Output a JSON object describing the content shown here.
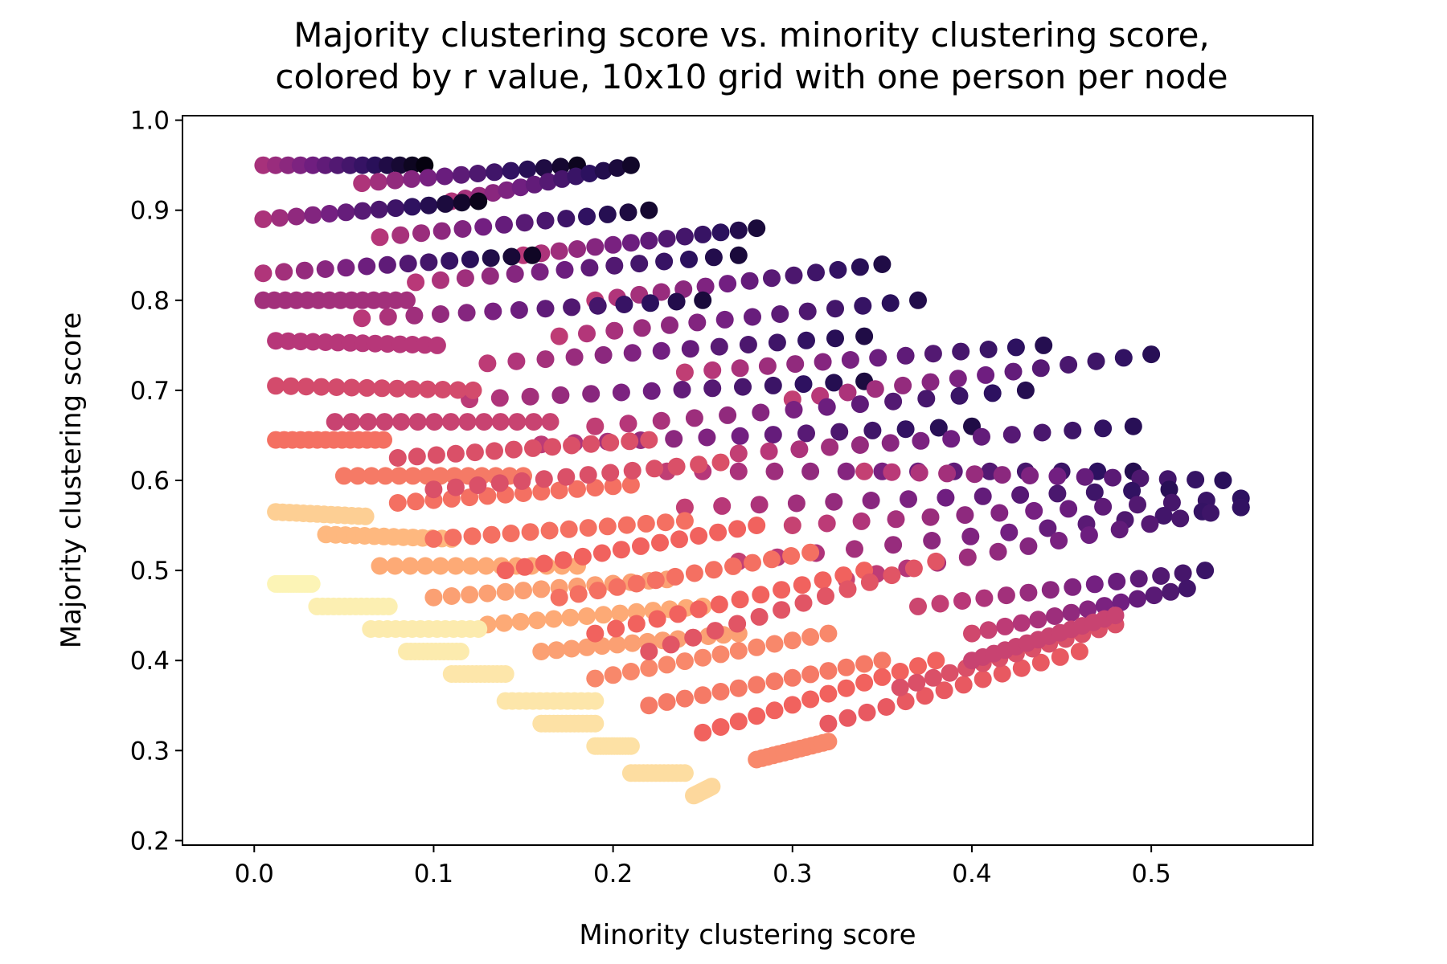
{
  "chart_data": {
    "type": "scatter",
    "title_lines": [
      "Majority clustering score vs. minority clustering score,",
      "colored by r value, 10x10 grid with one person per node"
    ],
    "xlabel": "Minority clustering score",
    "ylabel": "Majority clustering score",
    "xlim": [
      -0.04,
      0.59
    ],
    "ylim": [
      0.195,
      1.005
    ],
    "xticks": [
      "0.0",
      "0.1",
      "0.2",
      "0.3",
      "0.4",
      "0.5"
    ],
    "yticks": [
      "0.2",
      "0.3",
      "0.4",
      "0.5",
      "0.6",
      "0.7",
      "0.8",
      "0.9",
      "1.0"
    ],
    "colormap": "magma",
    "color_stops": [
      "#000004",
      "#2c115f",
      "#721f81",
      "#b73779",
      "#f1605d",
      "#feb078",
      "#fcfdbf"
    ],
    "grid": false,
    "legend": "none",
    "description_of_points": "Many short chains of markers; each chain has a start point (minority, majority) and runs toward the upper right, colored from light (low r) to dark (high r).",
    "chains": [
      {
        "start": [
          0.005,
          0.95
        ],
        "dx": 0.09,
        "dy": 0.0,
        "c": 0.98
      },
      {
        "start": [
          0.06,
          0.93
        ],
        "dx": 0.12,
        "dy": 0.02,
        "c": 0.95
      },
      {
        "start": [
          0.11,
          0.91
        ],
        "dx": 0.1,
        "dy": 0.04,
        "c": 0.93
      },
      {
        "start": [
          0.005,
          0.89
        ],
        "dx": 0.12,
        "dy": 0.02,
        "c": 0.96
      },
      {
        "start": [
          0.07,
          0.87
        ],
        "dx": 0.15,
        "dy": 0.03,
        "c": 0.92
      },
      {
        "start": [
          0.15,
          0.85
        ],
        "dx": 0.13,
        "dy": 0.03,
        "c": 0.9
      },
      {
        "start": [
          0.005,
          0.83
        ],
        "dx": 0.15,
        "dy": 0.02,
        "c": 0.94
      },
      {
        "start": [
          0.09,
          0.82
        ],
        "dx": 0.18,
        "dy": 0.03,
        "c": 0.9
      },
      {
        "start": [
          0.19,
          0.8
        ],
        "dx": 0.16,
        "dy": 0.04,
        "c": 0.88
      },
      {
        "start": [
          0.06,
          0.78
        ],
        "dx": 0.19,
        "dy": 0.02,
        "c": 0.9
      },
      {
        "start": [
          0.17,
          0.76
        ],
        "dx": 0.2,
        "dy": 0.04,
        "c": 0.87
      },
      {
        "start": [
          0.13,
          0.73
        ],
        "dx": 0.21,
        "dy": 0.03,
        "c": 0.88
      },
      {
        "start": [
          0.24,
          0.72
        ],
        "dx": 0.2,
        "dy": 0.03,
        "c": 0.86
      },
      {
        "start": [
          0.12,
          0.69
        ],
        "dx": 0.22,
        "dy": 0.02,
        "c": 0.89
      },
      {
        "start": [
          0.3,
          0.69
        ],
        "dx": 0.2,
        "dy": 0.05,
        "c": 0.85
      },
      {
        "start": [
          0.19,
          0.66
        ],
        "dx": 0.24,
        "dy": 0.04,
        "c": 0.86
      },
      {
        "start": [
          0.16,
          0.64
        ],
        "dx": 0.24,
        "dy": 0.02,
        "c": 0.88
      },
      {
        "start": [
          0.27,
          0.63
        ],
        "dx": 0.22,
        "dy": 0.03,
        "c": 0.85
      },
      {
        "start": [
          0.23,
          0.61
        ],
        "dx": 0.26,
        "dy": 0.0,
        "c": 0.86
      },
      {
        "start": [
          0.34,
          0.61
        ],
        "dx": 0.2,
        "dy": -0.01,
        "c": 0.84
      },
      {
        "start": [
          0.24,
          0.57
        ],
        "dx": 0.27,
        "dy": 0.02,
        "c": 0.85
      },
      {
        "start": [
          0.3,
          0.55
        ],
        "dx": 0.25,
        "dy": 0.03,
        "c": 0.83
      },
      {
        "start": [
          0.27,
          0.51
        ],
        "dx": 0.28,
        "dy": 0.06,
        "c": 0.84
      },
      {
        "start": [
          0.33,
          0.49
        ],
        "dx": 0.22,
        "dy": 0.08,
        "c": 0.82
      },
      {
        "start": [
          0.37,
          0.46
        ],
        "dx": 0.16,
        "dy": 0.04,
        "c": 0.8
      },
      {
        "start": [
          0.4,
          0.43
        ],
        "dx": 0.12,
        "dy": 0.05,
        "c": 0.78
      },
      {
        "start": [
          0.005,
          0.8
        ],
        "dx": 0.08,
        "dy": 0.0,
        "c": 0.55
      },
      {
        "start": [
          0.012,
          0.755
        ],
        "dx": 0.09,
        "dy": -0.005,
        "c": 0.5
      },
      {
        "start": [
          0.012,
          0.705
        ],
        "dx": 0.11,
        "dy": -0.005,
        "c": 0.42
      },
      {
        "start": [
          0.012,
          0.645
        ],
        "dx": 0.06,
        "dy": 0.0,
        "c": 0.3
      },
      {
        "start": [
          0.045,
          0.665
        ],
        "dx": 0.12,
        "dy": 0.0,
        "c": 0.45
      },
      {
        "start": [
          0.05,
          0.605
        ],
        "dx": 0.1,
        "dy": 0.0,
        "c": 0.28
      },
      {
        "start": [
          0.08,
          0.625
        ],
        "dx": 0.14,
        "dy": 0.02,
        "c": 0.4
      },
      {
        "start": [
          0.08,
          0.575
        ],
        "dx": 0.13,
        "dy": 0.02,
        "c": 0.3
      },
      {
        "start": [
          0.1,
          0.59
        ],
        "dx": 0.16,
        "dy": 0.03,
        "c": 0.4
      },
      {
        "start": [
          0.012,
          0.565
        ],
        "dx": 0.05,
        "dy": -0.005,
        "c": 0.1
      },
      {
        "start": [
          0.04,
          0.54
        ],
        "dx": 0.07,
        "dy": -0.005,
        "c": 0.15
      },
      {
        "start": [
          0.07,
          0.505
        ],
        "dx": 0.11,
        "dy": 0.0,
        "c": 0.18
      },
      {
        "start": [
          0.1,
          0.535
        ],
        "dx": 0.14,
        "dy": 0.02,
        "c": 0.3
      },
      {
        "start": [
          0.1,
          0.47
        ],
        "dx": 0.13,
        "dy": 0.02,
        "c": 0.2
      },
      {
        "start": [
          0.14,
          0.5
        ],
        "dx": 0.14,
        "dy": 0.05,
        "c": 0.33
      },
      {
        "start": [
          0.13,
          0.44
        ],
        "dx": 0.12,
        "dy": 0.02,
        "c": 0.18
      },
      {
        "start": [
          0.17,
          0.47
        ],
        "dx": 0.14,
        "dy": 0.05,
        "c": 0.3
      },
      {
        "start": [
          0.16,
          0.41
        ],
        "dx": 0.11,
        "dy": 0.02,
        "c": 0.2
      },
      {
        "start": [
          0.19,
          0.43
        ],
        "dx": 0.15,
        "dy": 0.07,
        "c": 0.33
      },
      {
        "start": [
          0.19,
          0.38
        ],
        "dx": 0.13,
        "dy": 0.05,
        "c": 0.25
      },
      {
        "start": [
          0.22,
          0.41
        ],
        "dx": 0.16,
        "dy": 0.1,
        "c": 0.38
      },
      {
        "start": [
          0.22,
          0.35
        ],
        "dx": 0.13,
        "dy": 0.05,
        "c": 0.28
      },
      {
        "start": [
          0.25,
          0.32
        ],
        "dx": 0.13,
        "dy": 0.08,
        "c": 0.33
      },
      {
        "start": [
          0.28,
          0.29
        ],
        "dx": 0.04,
        "dy": 0.02,
        "c": 0.25
      },
      {
        "start": [
          0.32,
          0.33
        ],
        "dx": 0.14,
        "dy": 0.08,
        "c": 0.36
      },
      {
        "start": [
          0.36,
          0.37
        ],
        "dx": 0.12,
        "dy": 0.07,
        "c": 0.4
      },
      {
        "start": [
          0.4,
          0.4
        ],
        "dx": 0.08,
        "dy": 0.05,
        "c": 0.45
      },
      {
        "start": [
          0.012,
          0.485
        ],
        "dx": 0.02,
        "dy": 0.0,
        "c": 0.02
      },
      {
        "start": [
          0.035,
          0.46
        ],
        "dx": 0.04,
        "dy": 0.0,
        "c": 0.03
      },
      {
        "start": [
          0.065,
          0.435
        ],
        "dx": 0.06,
        "dy": 0.0,
        "c": 0.04
      },
      {
        "start": [
          0.085,
          0.41
        ],
        "dx": 0.03,
        "dy": 0.0,
        "c": 0.04
      },
      {
        "start": [
          0.11,
          0.385
        ],
        "dx": 0.03,
        "dy": 0.0,
        "c": 0.05
      },
      {
        "start": [
          0.14,
          0.355
        ],
        "dx": 0.05,
        "dy": 0.0,
        "c": 0.05
      },
      {
        "start": [
          0.16,
          0.33
        ],
        "dx": 0.03,
        "dy": 0.0,
        "c": 0.06
      },
      {
        "start": [
          0.19,
          0.305
        ],
        "dx": 0.02,
        "dy": 0.0,
        "c": 0.06
      },
      {
        "start": [
          0.21,
          0.275
        ],
        "dx": 0.03,
        "dy": 0.0,
        "c": 0.07
      },
      {
        "start": [
          0.245,
          0.25
        ],
        "dx": 0.01,
        "dy": 0.01,
        "c": 0.08
      }
    ]
  }
}
